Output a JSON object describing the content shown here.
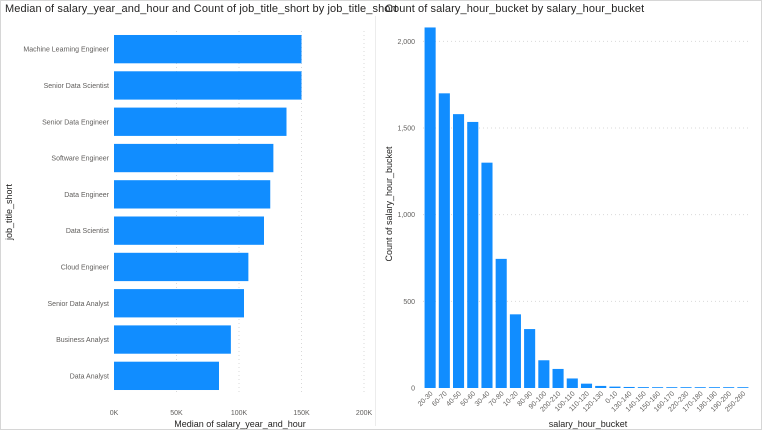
{
  "colors": {
    "bar": "#118dff",
    "grid": "#d9d9d9",
    "text": "#605e5c",
    "title": "#252423"
  },
  "chart_data": [
    {
      "type": "bar",
      "orientation": "horizontal",
      "title": "Median of salary_year_and_hour and Count of job_title_short by job_title_short",
      "xlabel": "Median of salary_year_and_hour",
      "ylabel": "job_title_short",
      "categories": [
        "Machine Learning Engineer",
        "Senior Data Scientist",
        "Senior Data Engineer",
        "Software Engineer",
        "Data Engineer",
        "Data Scientist",
        "Cloud Engineer",
        "Senior Data Analyst",
        "Business Analyst",
        "Data Analyst"
      ],
      "values": [
        150000,
        150000,
        138000,
        127500,
        125000,
        120000,
        107500,
        104000,
        93500,
        84000
      ],
      "xlim": [
        0,
        200000
      ],
      "xticks": [
        0,
        50000,
        100000,
        150000,
        200000
      ],
      "xtick_labels": [
        "0K",
        "50K",
        "100K",
        "150K",
        "200K"
      ],
      "grid": true
    },
    {
      "type": "bar",
      "orientation": "vertical",
      "title": "Count of salary_hour_bucket by salary_hour_bucket",
      "xlabel": "salary_hour_bucket",
      "ylabel": "Count of salary_hour_bucket",
      "categories": [
        "20-30",
        "60-70",
        "40-50",
        "50-60",
        "30-40",
        "70-80",
        "10-20",
        "80-90",
        "90-100",
        "200-210",
        "100-110",
        "110-120",
        "120-130",
        "0-10",
        "130-140",
        "140-150",
        "150-160",
        "160-170",
        "220-230",
        "170-180",
        "180-190",
        "190-200",
        "250-260"
      ],
      "values": [
        2080,
        1700,
        1580,
        1535,
        1300,
        745,
        425,
        340,
        160,
        110,
        55,
        25,
        12,
        8,
        6,
        5,
        4,
        3,
        3,
        2,
        2,
        2,
        1
      ],
      "ylim": [
        0,
        2100
      ],
      "yticks": [
        0,
        500,
        1000,
        1500,
        2000
      ],
      "ytick_labels": [
        "0",
        "500",
        "1,000",
        "1,500",
        "2,000"
      ],
      "grid": true
    }
  ]
}
